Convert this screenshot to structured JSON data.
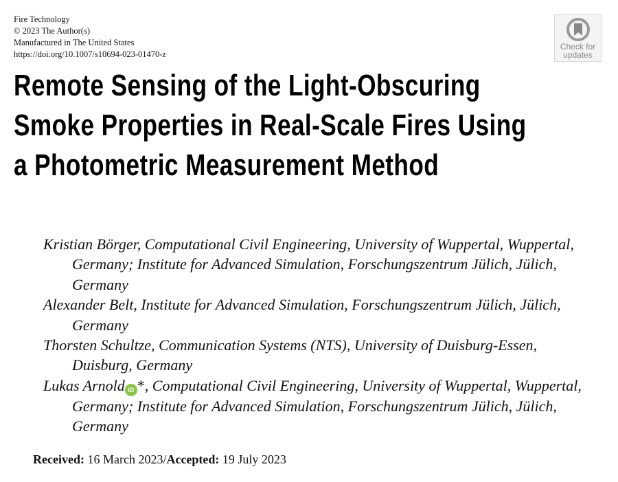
{
  "header": {
    "journal": "Fire Technology",
    "copyright": "© 2023 The Author(s)",
    "manufactured": "Manufactured in The United States",
    "doi": "https://doi.org/10.1007/s10694-023-01470-z"
  },
  "badge": {
    "line1": "Check for",
    "line2": "updates"
  },
  "title": {
    "line1": "Remote Sensing of the Light-Obscuring",
    "line2": "Smoke Properties in Real-Scale Fires Using",
    "line3": "a Photometric Measurement Method"
  },
  "authors": [
    {
      "name": "Kristian Börger",
      "affil": ", Computational Civil Engineering, University of Wuppertal, Wuppertal, Germany; Institute for Advanced Simulation, Forschungszentrum Jülich, Jülich, Germany"
    },
    {
      "name": "Alexander Belt",
      "affil": ", Institute for Advanced Simulation, Forschungszentrum Jülich, Jülich, Germany"
    },
    {
      "name": "Thorsten Schultze",
      "affil": ", Communication Systems (NTS), University of Duisburg-Essen, Duisburg, Germany"
    },
    {
      "name": "Lukas Arnold",
      "orcid": "iD",
      "mark": "*",
      "affil": ", Computational Civil Engineering, University of Wuppertal, Wuppertal, Germany; Institute for Advanced Simulation, Forschungszentrum Jülich, Jülich, Germany"
    }
  ],
  "dates": {
    "received_label": "Received:",
    "received": " 16 March 2023/",
    "accepted_label": "Accepted:",
    "accepted": " 19 July 2023"
  }
}
